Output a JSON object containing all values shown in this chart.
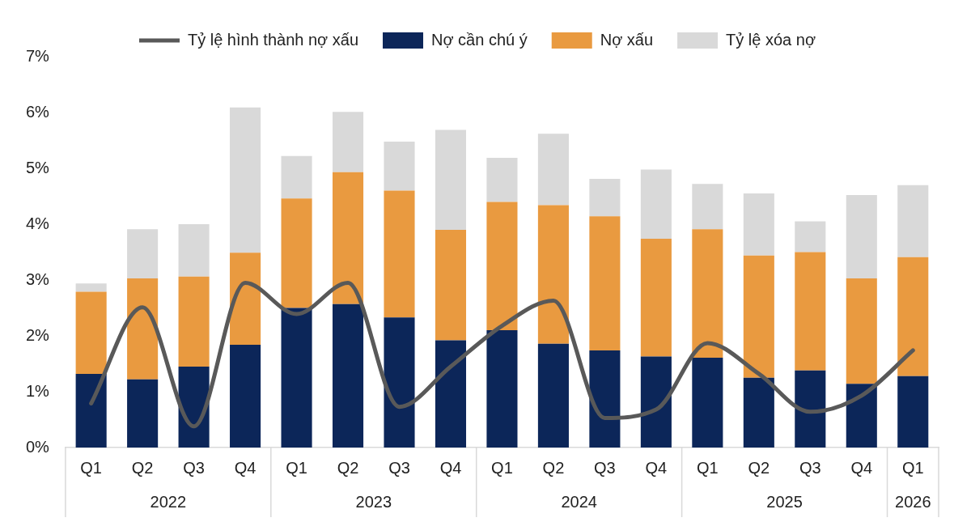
{
  "chart_data": {
    "type": "bar",
    "stacked": true,
    "categories": [
      "Q1",
      "Q2",
      "Q3",
      "Q4",
      "Q1",
      "Q2",
      "Q3",
      "Q4",
      "Q1",
      "Q2",
      "Q3",
      "Q4",
      "Q1",
      "Q2",
      "Q3",
      "Q4",
      "Q1"
    ],
    "series": [
      {
        "name": "Nợ cần chú ý",
        "color": "#0c2659",
        "values": [
          1.32,
          1.22,
          1.45,
          1.84,
          2.5,
          2.57,
          2.33,
          1.92,
          2.1,
          1.86,
          1.74,
          1.63,
          1.61,
          1.25,
          1.38,
          1.14,
          1.28
        ]
      },
      {
        "name": "Nợ xấu",
        "color": "#e99a40",
        "values": [
          1.47,
          1.81,
          1.61,
          1.65,
          1.96,
          2.36,
          2.27,
          1.98,
          2.3,
          2.48,
          2.4,
          2.11,
          2.3,
          2.19,
          2.12,
          1.89,
          2.13
        ]
      },
      {
        "name": "Tỷ lệ xóa nợ",
        "color": "#d9d9d9",
        "values": [
          0.15,
          0.88,
          0.94,
          2.6,
          0.76,
          1.08,
          0.88,
          1.79,
          0.79,
          1.28,
          0.67,
          1.24,
          0.81,
          1.11,
          0.55,
          1.49,
          1.29
        ]
      },
      {
        "name": "Tỷ lệ hình thành nợ xấu",
        "type": "line",
        "color": "#595959",
        "values": [
          0.79,
          2.51,
          0.38,
          2.95,
          2.39,
          2.95,
          0.73,
          1.45,
          2.18,
          2.63,
          0.53,
          0.68,
          1.87,
          1.32,
          0.64,
          0.93,
          1.74
        ]
      }
    ],
    "ylim": [
      0,
      7
    ],
    "yticks": [
      {
        "value": 0,
        "label": "0%"
      },
      {
        "value": 1,
        "label": "1%"
      },
      {
        "value": 2,
        "label": "2%"
      },
      {
        "value": 3,
        "label": "3%"
      },
      {
        "value": 4,
        "label": "4%"
      },
      {
        "value": 5,
        "label": "5%"
      },
      {
        "value": 6,
        "label": "6%"
      },
      {
        "value": 7,
        "label": "7%"
      }
    ],
    "annotations": [
      "2022",
      "2023",
      "2024",
      "2025",
      "2026"
    ],
    "grid": false,
    "legend": "top",
    "marker": "none",
    "line_style": "solid"
  }
}
